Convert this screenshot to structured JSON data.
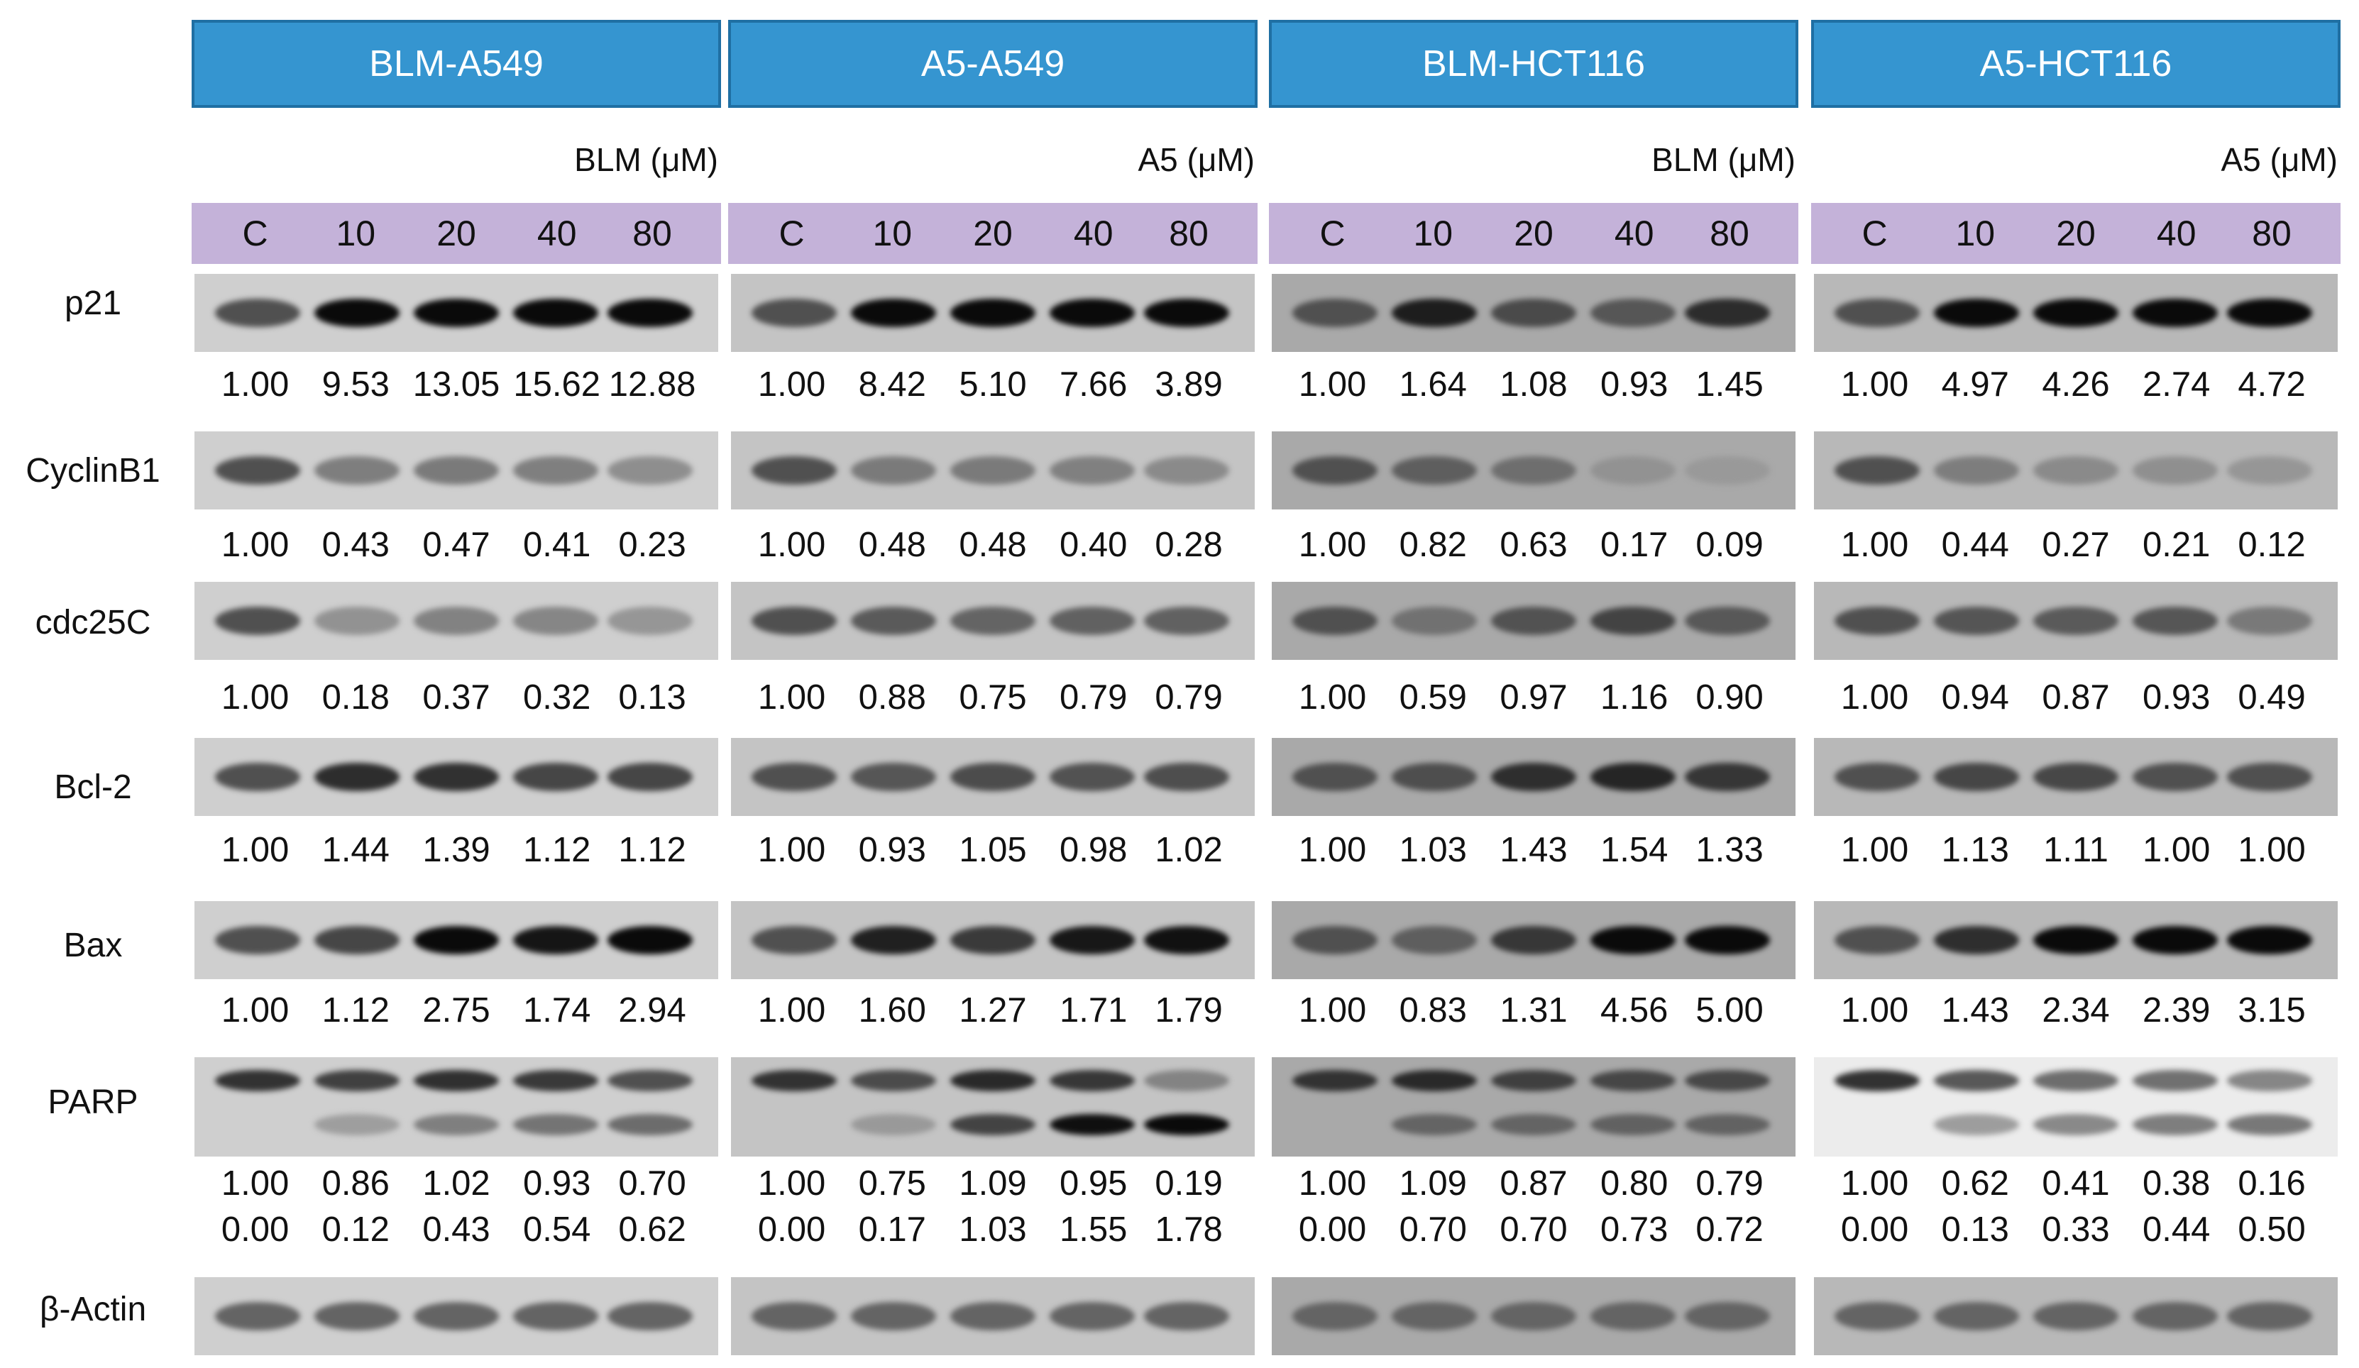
{
  "panels": [
    {
      "title": "BLM-A549",
      "treatment": "BLM (μM)"
    },
    {
      "title": "A5-A549",
      "treatment": "A5 (μM)"
    },
    {
      "title": "BLM-HCT116",
      "treatment": "BLM (μM)"
    },
    {
      "title": "A5-HCT116",
      "treatment": "A5 (μM)"
    }
  ],
  "doses": [
    "C",
    "10",
    "20",
    "40",
    "80"
  ],
  "proteins": [
    "p21",
    "CyclinB1",
    "cdc25C",
    "Bcl-2",
    "Bax",
    "PARP",
    "β-Actin"
  ],
  "quantification": {
    "p21": [
      [
        "1.00",
        "9.53",
        "13.05",
        "15.62",
        "12.88"
      ],
      [
        "1.00",
        "8.42",
        "5.10",
        "7.66",
        "3.89"
      ],
      [
        "1.00",
        "1.64",
        "1.08",
        "0.93",
        "1.45"
      ],
      [
        "1.00",
        "4.97",
        "4.26",
        "2.74",
        "4.72"
      ]
    ],
    "CyclinB1": [
      [
        "1.00",
        "0.43",
        "0.47",
        "0.41",
        "0.23"
      ],
      [
        "1.00",
        "0.48",
        "0.48",
        "0.40",
        "0.28"
      ],
      [
        "1.00",
        "0.82",
        "0.63",
        "0.17",
        "0.09"
      ],
      [
        "1.00",
        "0.44",
        "0.27",
        "0.21",
        "0.12"
      ]
    ],
    "cdc25C": [
      [
        "1.00",
        "0.18",
        "0.37",
        "0.32",
        "0.13"
      ],
      [
        "1.00",
        "0.88",
        "0.75",
        "0.79",
        "0.79"
      ],
      [
        "1.00",
        "0.59",
        "0.97",
        "1.16",
        "0.90"
      ],
      [
        "1.00",
        "0.94",
        "0.87",
        "0.93",
        "0.49"
      ]
    ],
    "Bcl-2": [
      [
        "1.00",
        "1.44",
        "1.39",
        "1.12",
        "1.12"
      ],
      [
        "1.00",
        "0.93",
        "1.05",
        "0.98",
        "1.02"
      ],
      [
        "1.00",
        "1.03",
        "1.43",
        "1.54",
        "1.33"
      ],
      [
        "1.00",
        "1.13",
        "1.11",
        "1.00",
        "1.00"
      ]
    ],
    "Bax": [
      [
        "1.00",
        "1.12",
        "2.75",
        "1.74",
        "2.94"
      ],
      [
        "1.00",
        "1.60",
        "1.27",
        "1.71",
        "1.79"
      ],
      [
        "1.00",
        "0.83",
        "1.31",
        "4.56",
        "5.00"
      ],
      [
        "1.00",
        "1.43",
        "2.34",
        "2.39",
        "3.15"
      ]
    ],
    "PARP_full": [
      [
        "1.00",
        "0.86",
        "1.02",
        "0.93",
        "0.70"
      ],
      [
        "1.00",
        "0.75",
        "1.09",
        "0.95",
        "0.19"
      ],
      [
        "1.00",
        "1.09",
        "0.87",
        "0.80",
        "0.79"
      ],
      [
        "1.00",
        "0.62",
        "0.41",
        "0.38",
        "0.16"
      ]
    ],
    "PARP_cleaved": [
      [
        "0.00",
        "0.12",
        "0.43",
        "0.54",
        "0.62"
      ],
      [
        "0.00",
        "0.17",
        "1.03",
        "1.55",
        "1.78"
      ],
      [
        "0.00",
        "0.70",
        "0.70",
        "0.73",
        "0.72"
      ],
      [
        "0.00",
        "0.13",
        "0.33",
        "0.44",
        "0.50"
      ]
    ]
  },
  "colors": {
    "header_fill": "#3595d0",
    "dose_bar_fill": "#c4b2d9"
  }
}
